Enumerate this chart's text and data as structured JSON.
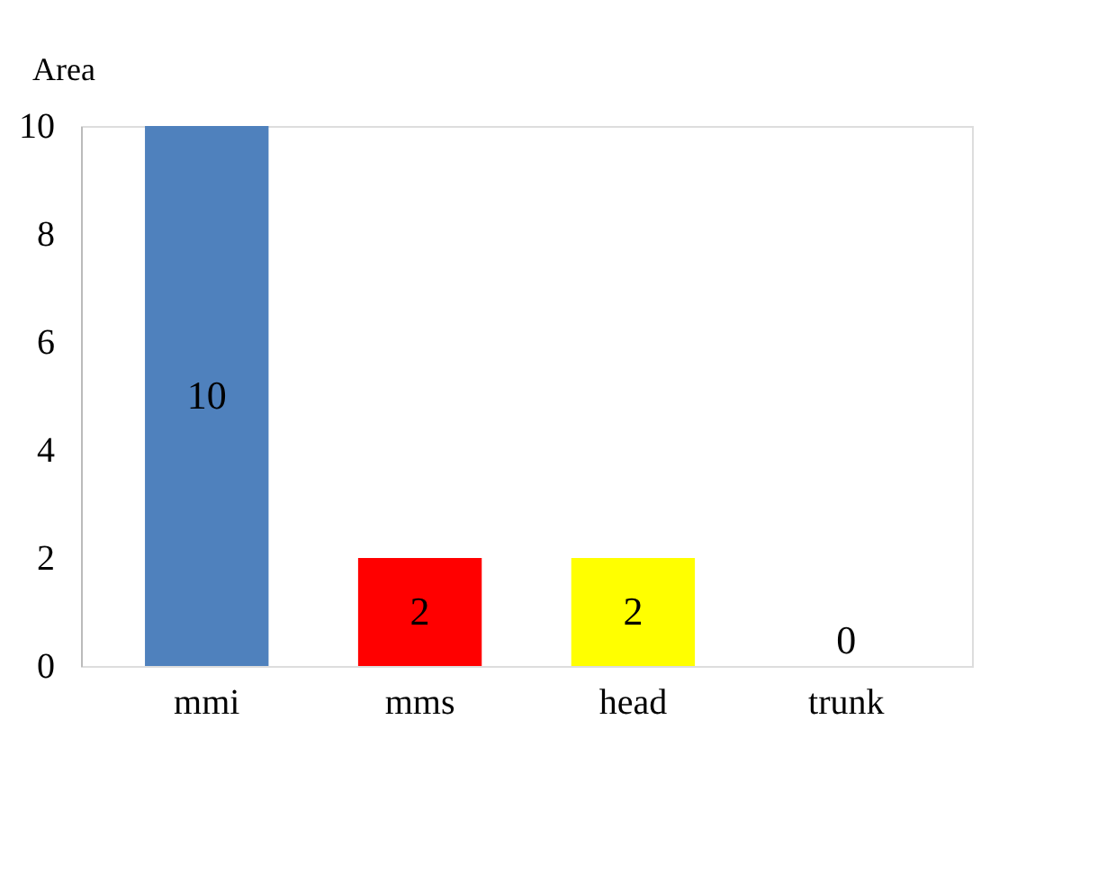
{
  "chart_data": {
    "type": "bar",
    "ylabel": "Area",
    "categories": [
      "mmi",
      "mms",
      "head",
      "trunk"
    ],
    "values": [
      10,
      2,
      2,
      0
    ],
    "colors": [
      "#4f81bd",
      "#ff0000",
      "#ffff00",
      "#00a050"
    ],
    "ylim": [
      0,
      10
    ],
    "yticks": [
      0,
      2,
      4,
      6,
      8,
      10
    ],
    "grid": false,
    "data_labels": true
  }
}
